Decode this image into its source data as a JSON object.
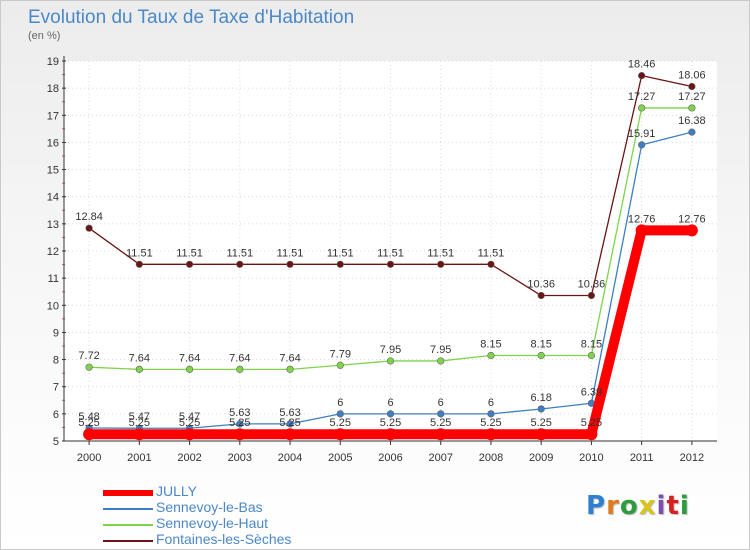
{
  "header": {
    "title": "Evolution du Taux de Taxe d'Habitation",
    "unit": "(en %)"
  },
  "brand": {
    "name": "Proxiti",
    "letters": [
      "P",
      "r",
      "o",
      "x",
      "i",
      "t",
      "i"
    ],
    "colors": [
      "#2e7fd0",
      "#e07a1e",
      "#2e9b3e",
      "#d8c41c",
      "#7a4fb0",
      "#d62020",
      "#2e9b3e"
    ]
  },
  "chart_data": {
    "type": "line",
    "title": "Evolution du Taux de Taxe d'Habitation",
    "ylabel": "(en %)",
    "xlabel": "",
    "x": [
      "2000",
      "2001",
      "2002",
      "2003",
      "2004",
      "2005",
      "2006",
      "2007",
      "2008",
      "2009",
      "2010",
      "2011",
      "2012"
    ],
    "ylim": [
      5,
      19
    ],
    "yticks": [
      "5",
      "6",
      "7",
      "8",
      "9",
      "10",
      "11",
      "12",
      "13",
      "14",
      "15",
      "16",
      "17",
      "18",
      "19"
    ],
    "grid": true,
    "legend_position": "bottom-left",
    "series": [
      {
        "name": "JULLY",
        "color": "#ff0000",
        "emphasis": true,
        "values": [
          5.25,
          5.25,
          5.25,
          5.25,
          5.25,
          5.25,
          5.25,
          5.25,
          5.25,
          5.25,
          5.25,
          12.76,
          12.76
        ],
        "labels": [
          "5.25",
          "5.25",
          "5.25",
          "5.25",
          "5.25",
          "5.25",
          "5.25",
          "5.25",
          "5.25",
          "5.25",
          "5.25",
          "12.76",
          "12.76"
        ]
      },
      {
        "name": "Sennevoy-le-Bas",
        "color": "#3d7fc1",
        "values": [
          5.48,
          5.47,
          5.47,
          5.63,
          5.63,
          6,
          6,
          6,
          6,
          6.18,
          6.39,
          15.91,
          16.38
        ],
        "labels": [
          "5.48",
          "5.47",
          "5.47",
          "5.63",
          "5.63",
          "6",
          "6",
          "6",
          "6",
          "6.18",
          "6.39",
          "15.91",
          "16.38"
        ]
      },
      {
        "name": "Sennevoy-le-Haut",
        "color": "#7fd44a",
        "values": [
          7.72,
          7.64,
          7.64,
          7.64,
          7.64,
          7.79,
          7.95,
          7.95,
          8.15,
          8.15,
          8.15,
          17.27,
          17.27
        ],
        "labels": [
          "7.72",
          "7.64",
          "7.64",
          "7.64",
          "7.64",
          "7.79",
          "7.95",
          "7.95",
          "8.15",
          "8.15",
          "8.15",
          "17.27",
          "17.27"
        ]
      },
      {
        "name": "Fontaines-les-Sèches",
        "color": "#6b1414",
        "values": [
          12.84,
          11.51,
          11.51,
          11.51,
          11.51,
          11.51,
          11.51,
          11.51,
          11.51,
          10.36,
          10.36,
          18.46,
          18.06
        ],
        "labels": [
          "12.84",
          "11.51",
          "11.51",
          "11.51",
          "11.51",
          "11.51",
          "11.51",
          "11.51",
          "11.51",
          "10.36",
          "10.36",
          "18.46",
          "18.06"
        ]
      }
    ]
  }
}
